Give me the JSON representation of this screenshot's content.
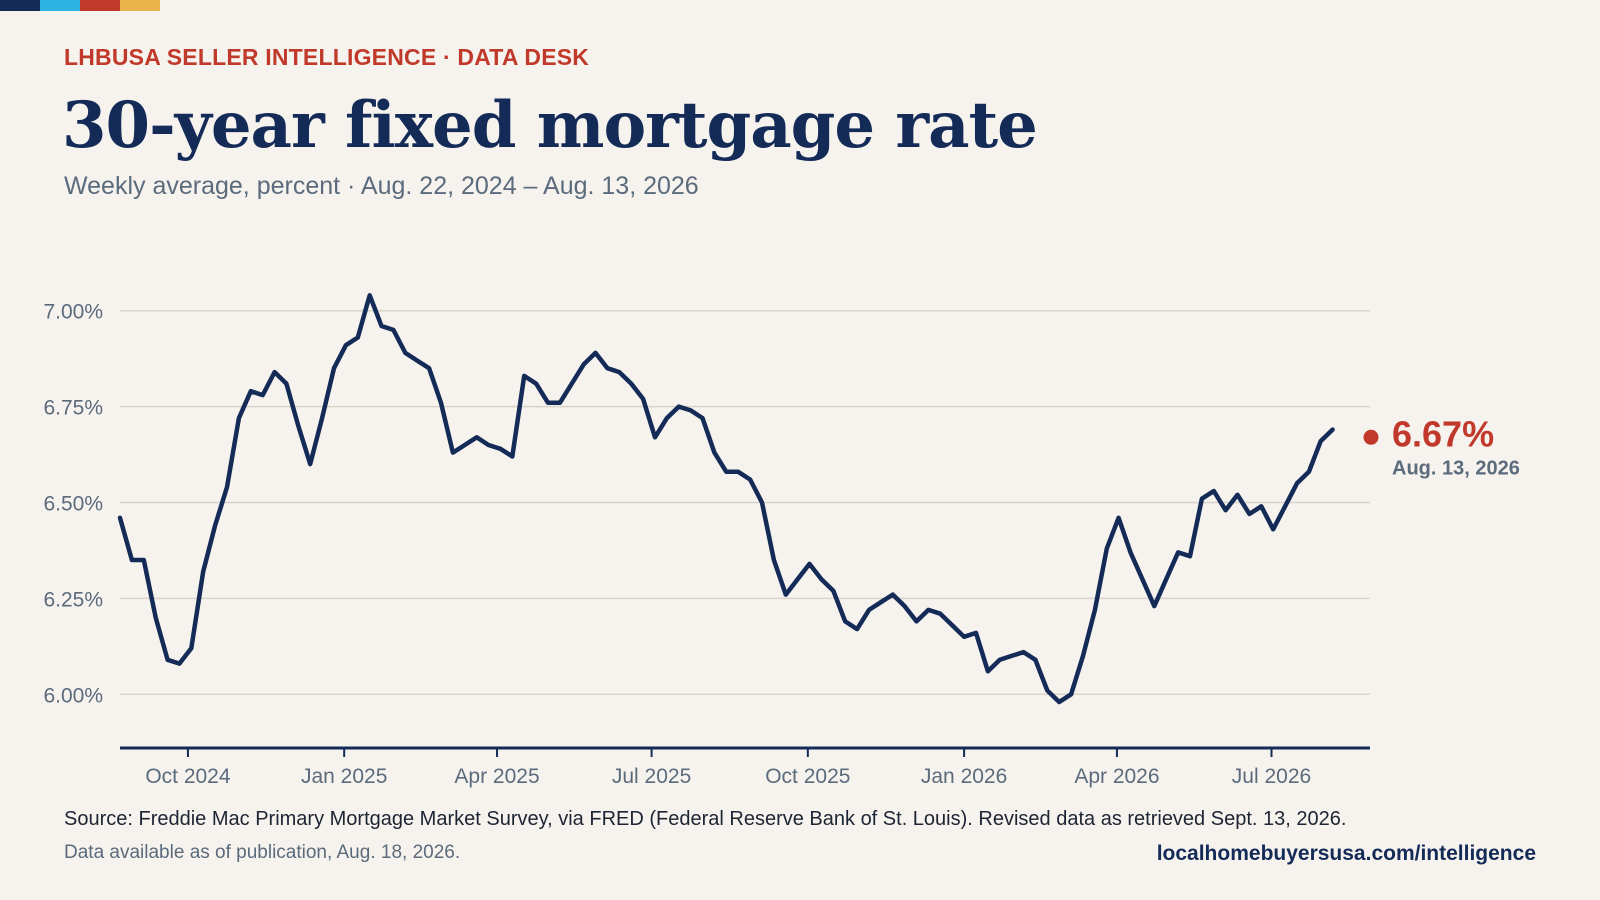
{
  "header": {
    "kicker": "LHBUSA SELLER INTELLIGENCE · DATA DESK",
    "title": "30-year fixed mortgage rate",
    "subtitle": "Weekly average, percent · Aug. 22, 2024 – Aug. 13, 2026"
  },
  "colors": {
    "brand_navy": "#142a57",
    "brand_cyan": "#2bb3e4",
    "brand_red": "#c0392b",
    "brand_gold": "#e9b44c",
    "line": "#142a57",
    "highlight": "#c0392b",
    "grid": "#d8d4cb",
    "background": "#f6f3ee"
  },
  "chart_data": {
    "type": "line",
    "ylim": [
      5.86,
      7.08
    ],
    "yticks": [
      6.0,
      6.25,
      6.5,
      6.75,
      7.0
    ],
    "ytick_labels": [
      "6.00%",
      "6.25%",
      "6.50%",
      "6.75%",
      "7.00%"
    ],
    "xlim": [
      "2024-08-22",
      "2026-08-28"
    ],
    "xticks": [
      "2024-10-01",
      "2025-01-01",
      "2025-04-01",
      "2025-07-01",
      "2025-10-01",
      "2026-01-01",
      "2026-04-01",
      "2026-07-01"
    ],
    "xtick_labels": [
      "Oct 2024",
      "Jan 2025",
      "Apr 2025",
      "Jul 2025",
      "Oct 2025",
      "Jan 2026",
      "Apr 2026",
      "Jul 2026"
    ],
    "grid": true,
    "series": [
      {
        "start": "2024-08-22",
        "interval_days": 7,
        "values": [
          6.46,
          6.35,
          6.35,
          6.2,
          6.09,
          6.08,
          6.12,
          6.32,
          6.44,
          6.54,
          6.72,
          6.79,
          6.78,
          6.84,
          6.81,
          6.7,
          6.6,
          6.72,
          6.85,
          6.91,
          6.93,
          7.04,
          6.96,
          6.95,
          6.89,
          6.87,
          6.85,
          6.76,
          6.63,
          6.65,
          6.67,
          6.65,
          6.64,
          6.62,
          6.83,
          6.81,
          6.76,
          6.76,
          6.81,
          6.86,
          6.89,
          6.85,
          6.84,
          6.81,
          6.77,
          6.67,
          6.72,
          6.75,
          6.74,
          6.72,
          6.63,
          6.58,
          6.58,
          6.56,
          6.5,
          6.35,
          6.26,
          6.3,
          6.34,
          6.3,
          6.27,
          6.19,
          6.17,
          6.22,
          6.24,
          6.26,
          6.23,
          6.19,
          6.22,
          6.21,
          6.18,
          6.15,
          6.16,
          6.06,
          6.09,
          6.1,
          6.11,
          6.09,
          6.01,
          5.98,
          6.0,
          6.1,
          6.22,
          6.38,
          6.46,
          6.37,
          6.3,
          6.23,
          6.3,
          6.37,
          6.36,
          6.51,
          6.53,
          6.48,
          6.52,
          6.47,
          6.49,
          6.43,
          6.49,
          6.55,
          6.58,
          6.66,
          6.69
        ]
      }
    ],
    "highlight": {
      "value_label": "6.67%",
      "date_label": "Aug. 13, 2026",
      "date": "2026-08-13",
      "value": 6.67
    }
  },
  "footer": {
    "source": "Source: Freddie Mac Primary Mortgage Market Survey, via FRED (Federal Reserve Bank of St. Louis). Revised data as retrieved Sept. 13, 2026.",
    "note": "Data available as of publication, Aug. 18, 2026.",
    "url": "localhomebuyersusa.com/intelligence"
  }
}
